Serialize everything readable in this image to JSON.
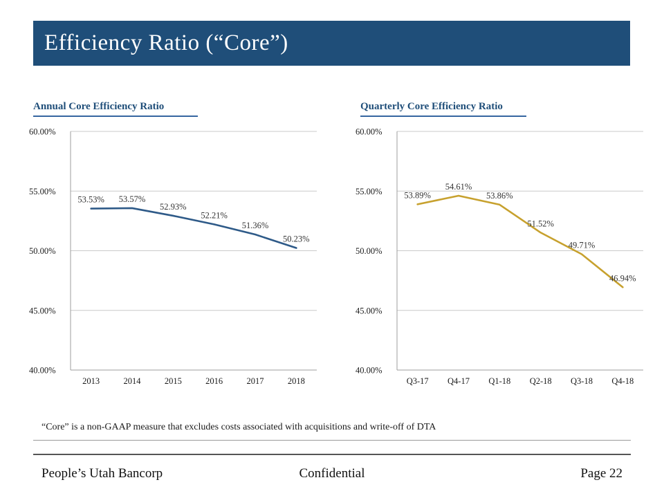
{
  "title_bar": {
    "title": "Efficiency Ratio (“Core”)"
  },
  "footnote": "“Core” is a non-GAAP measure that excludes costs associated with acquisitions and write-off of DTA",
  "footer": {
    "left": "People’s Utah Bancorp",
    "center": "Confidential",
    "right": "Page 22"
  },
  "colors": {
    "title_bar": "#1F4E79",
    "heading_text": "#1F4E79",
    "heading_underline": "#3465A0",
    "grid": "#C9C9C9",
    "axis": "#9E9E9E",
    "tick_text": "#1a1a1a",
    "data_label_text": "#333333",
    "annual_line": "#2E5A88",
    "quarterly_line": "#C7A12E"
  },
  "chart_data": [
    {
      "type": "line",
      "title": "Annual Core Efficiency Ratio",
      "categories": [
        "2013",
        "2014",
        "2015",
        "2016",
        "2017",
        "2018"
      ],
      "series": [
        {
          "name": "Core Efficiency Ratio",
          "values": [
            53.53,
            53.57,
            52.93,
            52.21,
            51.36,
            50.23
          ]
        }
      ],
      "data_labels": [
        "53.53%",
        "53.57%",
        "52.93%",
        "52.21%",
        "51.36%",
        "50.23%"
      ],
      "ylim": [
        40,
        60
      ],
      "yticks": [
        40,
        45,
        50,
        55,
        60
      ],
      "ytick_labels": [
        "40.00%",
        "45.00%",
        "50.00%",
        "55.00%",
        "60.00%"
      ],
      "grid": true,
      "legend": "none",
      "line_color": "#2E5A88"
    },
    {
      "type": "line",
      "title": "Quarterly Core Efficiency Ratio",
      "categories": [
        "Q3-17",
        "Q4-17",
        "Q1-18",
        "Q2-18",
        "Q3-18",
        "Q4-18"
      ],
      "series": [
        {
          "name": "Core Efficiency Ratio",
          "values": [
            53.89,
            54.61,
            53.86,
            51.52,
            49.71,
            46.94
          ]
        }
      ],
      "data_labels": [
        "53.89%",
        "54.61%",
        "53.86%",
        "51.52%",
        "49.71%",
        "46.94%"
      ],
      "ylim": [
        40,
        60
      ],
      "yticks": [
        40,
        45,
        50,
        55,
        60
      ],
      "ytick_labels": [
        "40.00%",
        "45.00%",
        "50.00%",
        "55.00%",
        "60.00%"
      ],
      "grid": true,
      "legend": "none",
      "line_color": "#C7A12E"
    }
  ]
}
